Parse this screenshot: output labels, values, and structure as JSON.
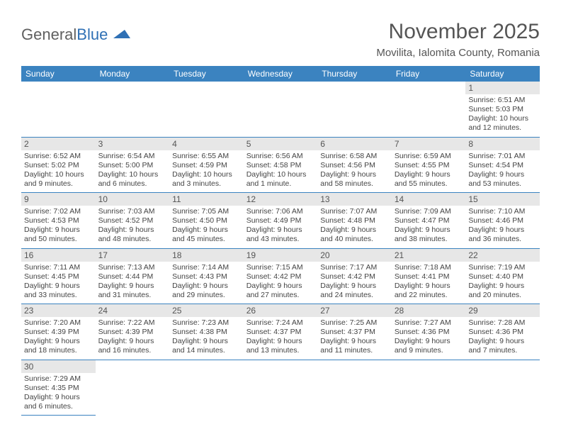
{
  "logo": {
    "part1": "General",
    "part2": "Blue"
  },
  "title": "November 2025",
  "subtitle": "Movilita, Ialomita County, Romania",
  "colors": {
    "header_bg": "#3b83c0",
    "header_text": "#ffffff",
    "daynum_bg": "#e7e7e7",
    "border": "#3b83c0",
    "text": "#444444",
    "logo_blue": "#2f70b5"
  },
  "weekdays": [
    "Sunday",
    "Monday",
    "Tuesday",
    "Wednesday",
    "Thursday",
    "Friday",
    "Saturday"
  ],
  "weeks": [
    [
      null,
      null,
      null,
      null,
      null,
      null,
      {
        "d": "1",
        "sunrise": "6:51 AM",
        "sunset": "5:03 PM",
        "daylight": "10 hours and 12 minutes."
      }
    ],
    [
      {
        "d": "2",
        "sunrise": "6:52 AM",
        "sunset": "5:02 PM",
        "daylight": "10 hours and 9 minutes."
      },
      {
        "d": "3",
        "sunrise": "6:54 AM",
        "sunset": "5:00 PM",
        "daylight": "10 hours and 6 minutes."
      },
      {
        "d": "4",
        "sunrise": "6:55 AM",
        "sunset": "4:59 PM",
        "daylight": "10 hours and 3 minutes."
      },
      {
        "d": "5",
        "sunrise": "6:56 AM",
        "sunset": "4:58 PM",
        "daylight": "10 hours and 1 minute."
      },
      {
        "d": "6",
        "sunrise": "6:58 AM",
        "sunset": "4:56 PM",
        "daylight": "9 hours and 58 minutes."
      },
      {
        "d": "7",
        "sunrise": "6:59 AM",
        "sunset": "4:55 PM",
        "daylight": "9 hours and 55 minutes."
      },
      {
        "d": "8",
        "sunrise": "7:01 AM",
        "sunset": "4:54 PM",
        "daylight": "9 hours and 53 minutes."
      }
    ],
    [
      {
        "d": "9",
        "sunrise": "7:02 AM",
        "sunset": "4:53 PM",
        "daylight": "9 hours and 50 minutes."
      },
      {
        "d": "10",
        "sunrise": "7:03 AM",
        "sunset": "4:52 PM",
        "daylight": "9 hours and 48 minutes."
      },
      {
        "d": "11",
        "sunrise": "7:05 AM",
        "sunset": "4:50 PM",
        "daylight": "9 hours and 45 minutes."
      },
      {
        "d": "12",
        "sunrise": "7:06 AM",
        "sunset": "4:49 PM",
        "daylight": "9 hours and 43 minutes."
      },
      {
        "d": "13",
        "sunrise": "7:07 AM",
        "sunset": "4:48 PM",
        "daylight": "9 hours and 40 minutes."
      },
      {
        "d": "14",
        "sunrise": "7:09 AM",
        "sunset": "4:47 PM",
        "daylight": "9 hours and 38 minutes."
      },
      {
        "d": "15",
        "sunrise": "7:10 AM",
        "sunset": "4:46 PM",
        "daylight": "9 hours and 36 minutes."
      }
    ],
    [
      {
        "d": "16",
        "sunrise": "7:11 AM",
        "sunset": "4:45 PM",
        "daylight": "9 hours and 33 minutes."
      },
      {
        "d": "17",
        "sunrise": "7:13 AM",
        "sunset": "4:44 PM",
        "daylight": "9 hours and 31 minutes."
      },
      {
        "d": "18",
        "sunrise": "7:14 AM",
        "sunset": "4:43 PM",
        "daylight": "9 hours and 29 minutes."
      },
      {
        "d": "19",
        "sunrise": "7:15 AM",
        "sunset": "4:42 PM",
        "daylight": "9 hours and 27 minutes."
      },
      {
        "d": "20",
        "sunrise": "7:17 AM",
        "sunset": "4:42 PM",
        "daylight": "9 hours and 24 minutes."
      },
      {
        "d": "21",
        "sunrise": "7:18 AM",
        "sunset": "4:41 PM",
        "daylight": "9 hours and 22 minutes."
      },
      {
        "d": "22",
        "sunrise": "7:19 AM",
        "sunset": "4:40 PM",
        "daylight": "9 hours and 20 minutes."
      }
    ],
    [
      {
        "d": "23",
        "sunrise": "7:20 AM",
        "sunset": "4:39 PM",
        "daylight": "9 hours and 18 minutes."
      },
      {
        "d": "24",
        "sunrise": "7:22 AM",
        "sunset": "4:39 PM",
        "daylight": "9 hours and 16 minutes."
      },
      {
        "d": "25",
        "sunrise": "7:23 AM",
        "sunset": "4:38 PM",
        "daylight": "9 hours and 14 minutes."
      },
      {
        "d": "26",
        "sunrise": "7:24 AM",
        "sunset": "4:37 PM",
        "daylight": "9 hours and 13 minutes."
      },
      {
        "d": "27",
        "sunrise": "7:25 AM",
        "sunset": "4:37 PM",
        "daylight": "9 hours and 11 minutes."
      },
      {
        "d": "28",
        "sunrise": "7:27 AM",
        "sunset": "4:36 PM",
        "daylight": "9 hours and 9 minutes."
      },
      {
        "d": "29",
        "sunrise": "7:28 AM",
        "sunset": "4:36 PM",
        "daylight": "9 hours and 7 minutes."
      }
    ],
    [
      {
        "d": "30",
        "sunrise": "7:29 AM",
        "sunset": "4:35 PM",
        "daylight": "9 hours and 6 minutes."
      },
      null,
      null,
      null,
      null,
      null,
      null
    ]
  ],
  "labels": {
    "sunrise": "Sunrise: ",
    "sunset": "Sunset: ",
    "daylight": "Daylight: "
  }
}
